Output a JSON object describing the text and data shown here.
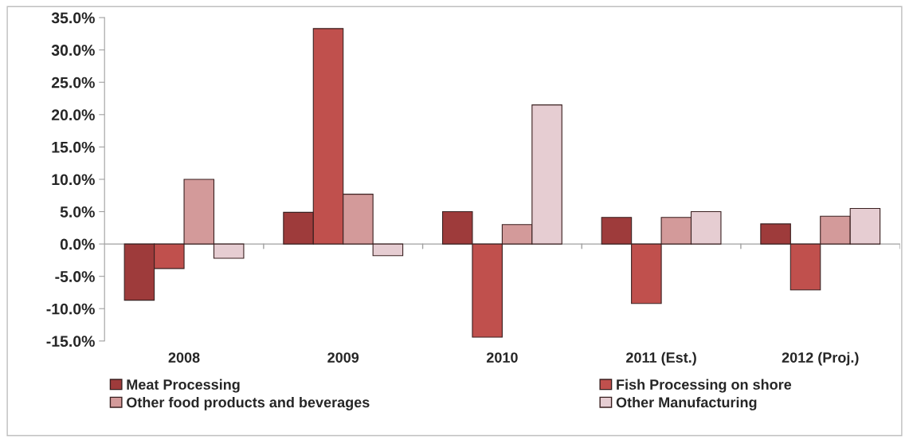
{
  "chart_data": {
    "type": "bar",
    "categories": [
      "2008",
      "2009",
      "2010",
      "2011 (Est.)",
      "2012 (Proj.)"
    ],
    "series": [
      {
        "name": "Meat Processing",
        "color": "#9e3b3b",
        "values": [
          -8.7,
          4.9,
          5.0,
          4.1,
          3.1
        ]
      },
      {
        "name": "Fish Processing on shore",
        "color": "#c0504d",
        "values": [
          -3.8,
          33.3,
          -14.4,
          -9.2,
          -7.1
        ]
      },
      {
        "name": "Other food products and beverages",
        "color": "#d39a9a",
        "values": [
          10.0,
          7.7,
          3.0,
          4.1,
          4.3
        ]
      },
      {
        "name": "Other Manufacturing",
        "color": "#e6cdd2",
        "values": [
          -2.2,
          -1.8,
          21.5,
          5.0,
          5.5
        ]
      }
    ],
    "ylim": [
      -15,
      35
    ],
    "yticks": [
      {
        "value": -15,
        "label": "-15.0%"
      },
      {
        "value": -10,
        "label": "-10.0%"
      },
      {
        "value": -5,
        "label": "-5.0%"
      },
      {
        "value": 0,
        "label": "0.0%"
      },
      {
        "value": 5,
        "label": "5.0%"
      },
      {
        "value": 10,
        "label": "10.0%"
      },
      {
        "value": 15,
        "label": "15.0%"
      },
      {
        "value": 20,
        "label": "20.0%"
      },
      {
        "value": 25,
        "label": "25.0%"
      },
      {
        "value": 30,
        "label": "30.0%"
      },
      {
        "value": 35,
        "label": "35.0%"
      }
    ],
    "legend": "bottom"
  }
}
